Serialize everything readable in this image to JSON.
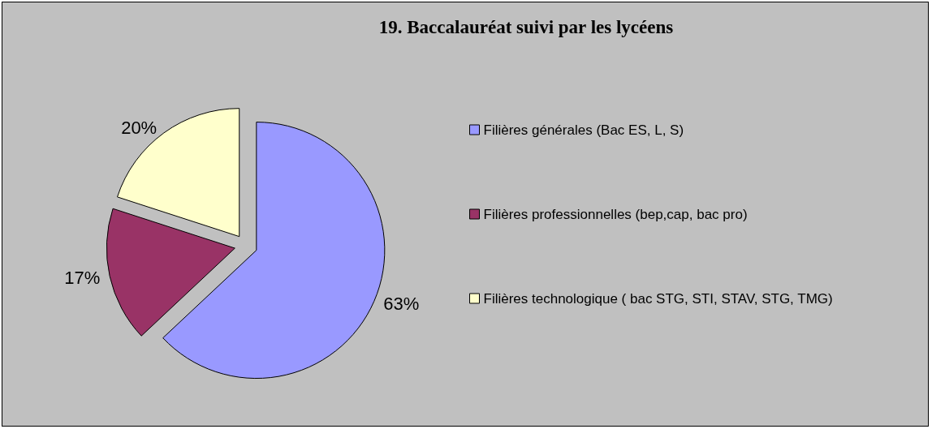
{
  "chart_data": {
    "type": "pie",
    "title": "19. Baccalauréat suivi par les lycéens",
    "categories": [
      "Filières générales (Bac ES, L, S)",
      "Filières professionnelles (bep,cap, bac pro)",
      "Filières technologique ( bac STG, STI, STAV, STG, TMG)"
    ],
    "values": [
      63,
      17,
      20
    ],
    "colors": [
      "#9999ff",
      "#993366",
      "#ffffcc"
    ],
    "value_labels": [
      "63%",
      "17%",
      "20%"
    ],
    "legend": "right"
  }
}
